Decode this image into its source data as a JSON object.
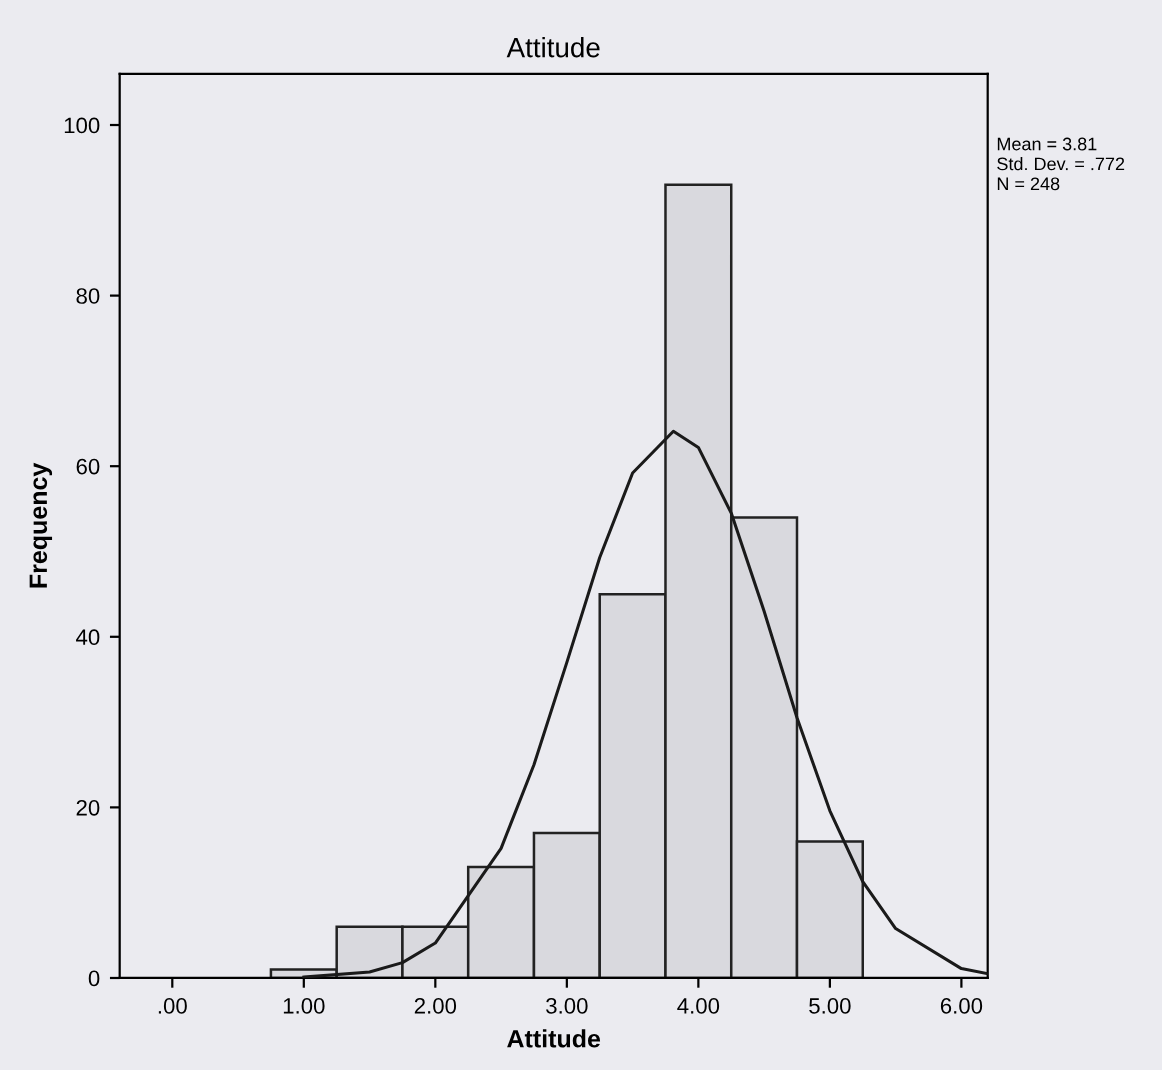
{
  "chart_data": {
    "type": "histogram",
    "title": "Attitude",
    "xlabel": "Attitude",
    "ylabel": "Frequency",
    "series": [
      {
        "color": "#d9d9de",
        "bins": [
          0.75,
          1.25,
          1.75,
          2.25,
          2.75,
          3.25,
          3.75,
          4.25,
          4.75,
          5.25
        ],
        "values": [
          1,
          6,
          6,
          13,
          17,
          45,
          93,
          54,
          16
        ]
      },
      {
        "type": "line",
        "color": "#1a1a1a",
        "x": [
          1.0,
          1.5,
          1.75,
          2.0,
          2.5,
          2.75,
          3.0,
          3.25,
          3.5,
          3.81,
          4.0,
          4.25,
          4.5,
          4.75,
          5.0,
          5.25,
          5.5,
          6.0,
          6.2
        ],
        "values": [
          0.1,
          0.7,
          1.8,
          4.1,
          15.2,
          25.0,
          37.0,
          49.3,
          59.2,
          64.1,
          62.2,
          54.5,
          43.0,
          30.5,
          19.6,
          11.3,
          5.8,
          1.1,
          0.5
        ]
      }
    ],
    "xlim": [
      -0.4,
      6.2
    ],
    "ylim": [
      0,
      106
    ],
    "xticks": [
      {
        "value": 0,
        "label": ".00"
      },
      {
        "value": 1,
        "label": "1.00"
      },
      {
        "value": 2,
        "label": "2.00"
      },
      {
        "value": 3,
        "label": "3.00"
      },
      {
        "value": 4,
        "label": "4.00"
      },
      {
        "value": 5,
        "label": "5.00"
      },
      {
        "value": 6,
        "label": "6.00"
      }
    ],
    "yticks": [
      0,
      20,
      40,
      60,
      80,
      100
    ],
    "grid": false,
    "legend": false,
    "annotations": [
      "Mean = 3.81",
      "Std. Dev. = .772",
      "N = 248"
    ]
  }
}
